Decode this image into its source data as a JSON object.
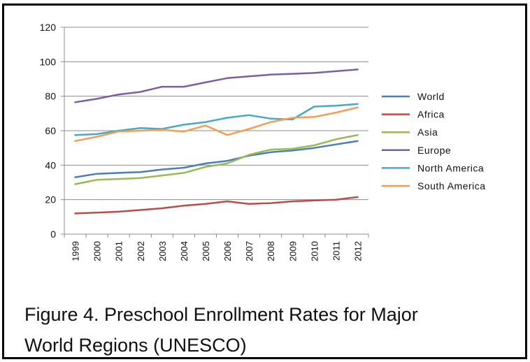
{
  "caption": {
    "line1": "Figure 4.  Preschool Enrollment Rates for Major",
    "line2": "World Regions (UNESCO)"
  },
  "chart_data": {
    "type": "line",
    "title": "",
    "xlabel": "",
    "ylabel": "",
    "ylim": [
      0,
      120
    ],
    "yticks": [
      0,
      20,
      40,
      60,
      80,
      100,
      120
    ],
    "grid": "horizontal",
    "legend_position": "right",
    "x": [
      "1999",
      "2000",
      "2001",
      "2002",
      "2003",
      "2004",
      "2005",
      "2006",
      "2007",
      "2008",
      "2009",
      "2010",
      "2011",
      "2012"
    ],
    "series": [
      {
        "name": "World",
        "color": "#4a7ebb",
        "values": [
          33,
          35,
          35.5,
          36,
          37.5,
          38.5,
          41,
          42.5,
          45.5,
          47.5,
          48.5,
          50,
          52,
          54
        ]
      },
      {
        "name": "Africa",
        "color": "#be4b48",
        "values": [
          12,
          12.5,
          13,
          14,
          15,
          16.5,
          17.5,
          19,
          17.5,
          18,
          19,
          19.5,
          20,
          21.5
        ]
      },
      {
        "name": "Asia",
        "color": "#98b954",
        "values": [
          29,
          31.5,
          32,
          32.5,
          34,
          35.5,
          39,
          41,
          46,
          49,
          49.5,
          51.5,
          55,
          57.5
        ]
      },
      {
        "name": "Europe",
        "color": "#7d5fa0",
        "values": [
          76.5,
          78.5,
          81,
          82.5,
          85.5,
          85.5,
          88,
          90.5,
          91.5,
          92.5,
          93,
          93.5,
          94.5,
          95.5
        ]
      },
      {
        "name": "North America",
        "color": "#46aac5",
        "values": [
          57.5,
          58,
          60,
          61.5,
          61,
          63.5,
          65,
          67.5,
          69,
          67,
          66.5,
          74,
          74.5,
          75.5
        ]
      },
      {
        "name": "South America",
        "color": "#f59d56",
        "values": [
          54,
          56.5,
          59.5,
          60,
          60.5,
          59.5,
          63,
          57.5,
          61,
          65,
          67.5,
          68,
          70.5,
          73.5
        ]
      }
    ]
  }
}
